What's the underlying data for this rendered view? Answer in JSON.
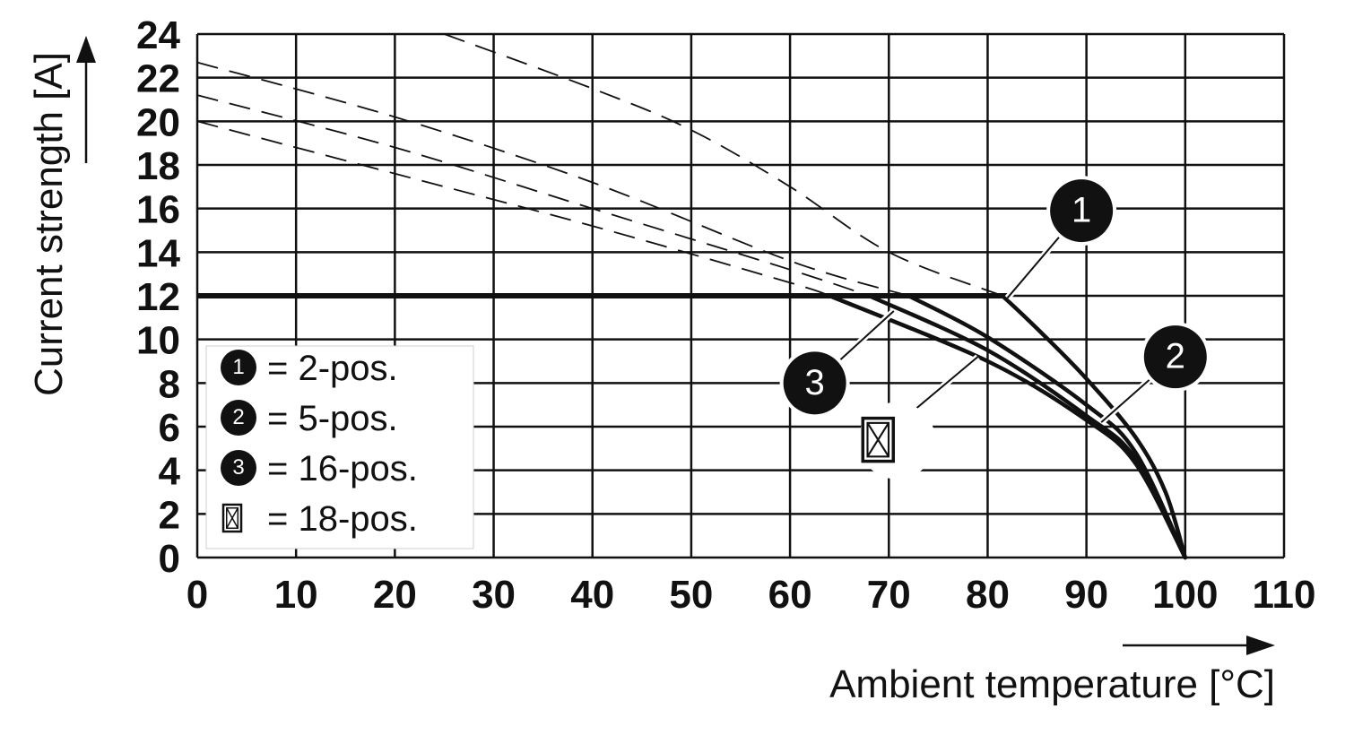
{
  "chart_data": {
    "type": "line",
    "xlabel": "Ambient temperature [°C]",
    "ylabel": "Current strength [A]",
    "xlim": [
      0,
      110
    ],
    "ylim": [
      0,
      24
    ],
    "x_ticks": [
      0,
      10,
      20,
      30,
      40,
      50,
      60,
      70,
      80,
      90,
      100,
      110
    ],
    "y_ticks": [
      0,
      2,
      4,
      6,
      8,
      10,
      12,
      14,
      16,
      18,
      20,
      22,
      24
    ],
    "grid": true,
    "legend_position": "bottom-left",
    "legend": [
      {
        "marker": "1",
        "label": "= 2-pos."
      },
      {
        "marker": "2",
        "label": "= 5-pos."
      },
      {
        "marker": "3",
        "label": "= 16-pos."
      },
      {
        "marker": "crossed-box-icon",
        "label": "= 18-pos."
      }
    ],
    "limit_line": {
      "y": 12,
      "x": [
        0,
        82
      ]
    },
    "series": [
      {
        "marker": "1",
        "dashed": {
          "x": [
            25,
            40,
            50,
            60,
            70,
            81.5
          ],
          "y": [
            24,
            21.5,
            19.6,
            17,
            14,
            12
          ]
        },
        "solid": {
          "x": [
            81.5,
            85,
            90,
            95,
            98,
            100
          ],
          "y": [
            12,
            10.5,
            8.2,
            5.5,
            3,
            0
          ]
        }
      },
      {
        "marker": "2",
        "dashed": {
          "x": [
            0,
            20,
            40,
            60,
            72
          ],
          "y": [
            22.7,
            20.2,
            17.2,
            13.6,
            12
          ]
        },
        "solid": {
          "x": [
            72,
            80,
            90,
            95,
            100
          ],
          "y": [
            12,
            10.1,
            7,
            4.8,
            0
          ]
        }
      },
      {
        "marker": "crossed-box-icon",
        "dashed": {
          "x": [
            0,
            20,
            40,
            60,
            68
          ],
          "y": [
            21.2,
            18.8,
            16,
            13.2,
            12
          ]
        },
        "solid": {
          "x": [
            68,
            80,
            90,
            95,
            100
          ],
          "y": [
            12,
            9.5,
            6.5,
            4.5,
            0
          ]
        }
      },
      {
        "marker": "3",
        "dashed": {
          "x": [
            0,
            20,
            40,
            60,
            64
          ],
          "y": [
            20,
            17.6,
            15.2,
            12.6,
            12
          ]
        },
        "solid": {
          "x": [
            64,
            80,
            90,
            95,
            100
          ],
          "y": [
            12,
            9,
            6.3,
            4.3,
            0
          ]
        }
      }
    ],
    "callouts": [
      {
        "marker": "1",
        "at": [
          82,
          11.9
        ],
        "badge_at": [
          89.5,
          15.9
        ]
      },
      {
        "marker": "2",
        "at": [
          91.5,
          6.2
        ],
        "badge_at": [
          99,
          9.2
        ]
      },
      {
        "marker": "3",
        "at": [
          70.5,
          11.3
        ],
        "badge_at": [
          62.5,
          8
        ]
      },
      {
        "marker": "crossed-box-icon",
        "at": [
          79,
          9.2
        ],
        "badge_at": [
          69,
          5.4
        ]
      }
    ]
  }
}
